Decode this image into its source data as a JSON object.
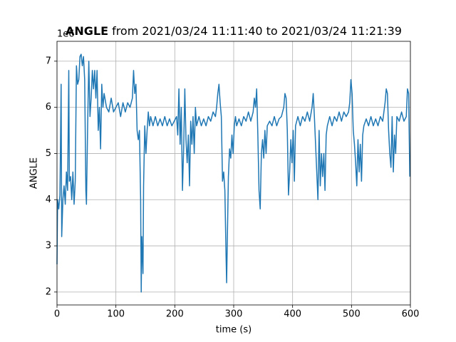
{
  "chart_data": {
    "type": "line",
    "title_bold": "ANGLE",
    "title": "from 2021/03/24 11:11:40 to 2021/03/24 11:21:39",
    "xlabel": "time (s)",
    "ylabel": "ANGLE",
    "y_offset_label": "1e6",
    "color": "#1f77b4",
    "grid": true,
    "xlim": [
      0,
      600
    ],
    "ylim": [
      1.72,
      7.43
    ],
    "xticks": [
      0,
      100,
      200,
      300,
      400,
      500,
      600
    ],
    "yticks": [
      2,
      3,
      4,
      5,
      6,
      7
    ],
    "x": [
      0,
      1,
      3,
      5,
      7,
      8,
      10,
      12,
      14,
      16,
      18,
      20,
      21,
      23,
      25,
      27,
      29,
      31,
      33,
      35,
      37,
      39,
      41,
      43,
      45,
      47,
      49,
      50,
      52,
      54,
      56,
      58,
      60,
      62,
      64,
      66,
      68,
      70,
      72,
      74,
      76,
      78,
      80,
      84,
      88,
      92,
      96,
      100,
      104,
      108,
      112,
      116,
      120,
      124,
      128,
      130,
      132,
      134,
      136,
      138,
      140,
      142,
      143,
      144,
      146,
      147,
      149,
      151,
      153,
      155,
      157,
      159,
      163,
      167,
      171,
      175,
      179,
      183,
      187,
      191,
      195,
      199,
      203,
      205,
      207,
      209,
      211,
      213,
      215,
      217,
      219,
      221,
      223,
      225,
      227,
      229,
      231,
      233,
      235,
      237,
      241,
      245,
      249,
      253,
      257,
      261,
      265,
      269,
      271,
      273,
      275,
      277,
      279,
      281,
      283,
      285,
      287,
      288,
      289,
      291,
      293,
      295,
      297,
      299,
      301,
      303,
      305,
      309,
      313,
      317,
      321,
      325,
      329,
      333,
      335,
      337,
      339,
      341,
      343,
      345,
      347,
      349,
      351,
      353,
      355,
      357,
      361,
      365,
      369,
      373,
      377,
      381,
      385,
      387,
      389,
      391,
      393,
      395,
      397,
      399,
      401,
      403,
      405,
      409,
      413,
      417,
      421,
      425,
      429,
      433,
      435,
      437,
      439,
      441,
      443,
      445,
      447,
      449,
      451,
      453,
      455,
      457,
      459,
      463,
      467,
      471,
      475,
      479,
      483,
      487,
      491,
      495,
      497,
      499,
      501,
      503,
      505,
      507,
      509,
      511,
      513,
      515,
      517,
      519,
      521,
      525,
      529,
      533,
      537,
      541,
      545,
      549,
      553,
      555,
      557,
      559,
      561,
      563,
      565,
      567,
      569,
      571,
      573,
      575,
      577,
      581,
      585,
      589,
      593,
      595,
      597,
      599
    ],
    "values": [
      2.6,
      4.0,
      3.8,
      4.1,
      6.5,
      3.2,
      4.0,
      4.3,
      3.9,
      4.6,
      4.2,
      6.8,
      4.4,
      4.5,
      4.0,
      4.6,
      3.9,
      4.4,
      6.9,
      6.5,
      6.6,
      7.1,
      7.15,
      6.9,
      7.1,
      6.6,
      4.2,
      3.9,
      5.6,
      7.0,
      5.8,
      6.2,
      6.8,
      6.4,
      6.8,
      6.2,
      6.8,
      5.5,
      6.0,
      5.1,
      6.5,
      6.0,
      6.3,
      6.0,
      5.9,
      6.2,
      5.9,
      6.0,
      6.1,
      5.8,
      6.1,
      5.9,
      6.1,
      6.0,
      6.2,
      6.8,
      6.3,
      6.5,
      5.5,
      5.3,
      5.5,
      4.0,
      2.0,
      3.2,
      2.4,
      4.3,
      5.6,
      5.0,
      5.5,
      5.9,
      5.6,
      5.8,
      5.6,
      5.8,
      5.6,
      5.75,
      5.6,
      5.8,
      5.6,
      5.75,
      5.6,
      5.7,
      5.8,
      5.4,
      6.4,
      5.2,
      6.0,
      4.2,
      5.1,
      6.4,
      5.3,
      4.8,
      5.4,
      4.3,
      5.7,
      5.2,
      5.8,
      5.0,
      6.0,
      5.6,
      5.8,
      5.6,
      5.75,
      5.6,
      5.8,
      5.7,
      5.9,
      5.8,
      6.0,
      6.3,
      6.5,
      6.1,
      5.8,
      4.4,
      4.6,
      4.2,
      2.8,
      2.2,
      3.0,
      4.5,
      5.1,
      4.9,
      5.4,
      5.0,
      5.6,
      5.8,
      5.6,
      5.75,
      5.6,
      5.8,
      5.7,
      5.9,
      5.7,
      5.9,
      6.2,
      6.0,
      6.4,
      5.4,
      4.2,
      3.8,
      5.0,
      5.3,
      4.9,
      5.5,
      5.0,
      5.6,
      5.7,
      5.6,
      5.8,
      5.6,
      5.75,
      5.8,
      6.0,
      6.3,
      6.2,
      5.5,
      4.1,
      4.6,
      5.3,
      4.8,
      5.5,
      4.4,
      5.6,
      5.8,
      5.6,
      5.8,
      5.7,
      5.9,
      5.7,
      6.0,
      6.3,
      5.8,
      5.2,
      4.6,
      4.0,
      5.5,
      4.3,
      5.0,
      4.5,
      5.0,
      4.2,
      5.4,
      5.6,
      5.8,
      5.6,
      5.8,
      5.7,
      5.9,
      5.7,
      5.9,
      5.8,
      5.9,
      6.1,
      6.6,
      6.3,
      5.5,
      5.2,
      4.8,
      4.3,
      5.3,
      4.6,
      5.2,
      4.4,
      5.4,
      5.6,
      5.75,
      5.6,
      5.8,
      5.6,
      5.75,
      5.6,
      5.8,
      5.7,
      5.9,
      6.1,
      6.4,
      6.3,
      5.5,
      5.0,
      4.7,
      5.8,
      4.6,
      5.4,
      5.0,
      5.8,
      5.7,
      5.9,
      5.7,
      5.8,
      6.4,
      6.3,
      4.5
    ]
  }
}
